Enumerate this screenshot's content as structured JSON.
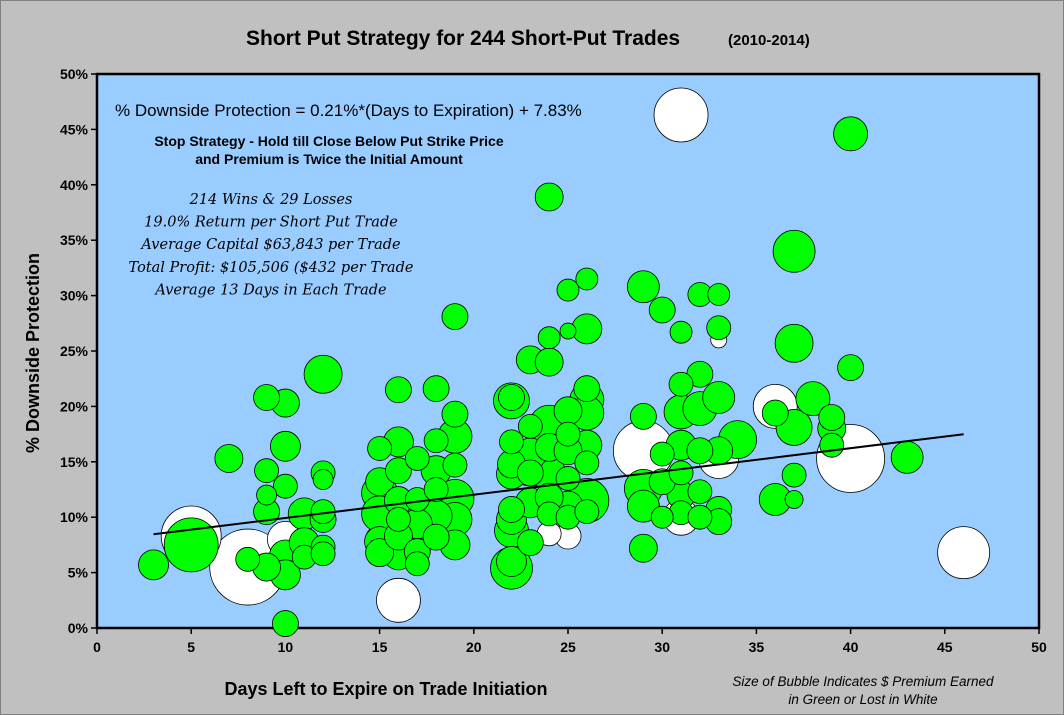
{
  "chart_data": {
    "type": "scatter",
    "title": "Short Put Strategy for 244 Short-Put Trades",
    "subtitle": "(2010-2014)",
    "xlabel": "Days Left to Expire on Trade Initiation",
    "ylabel": "% Downside Protection",
    "xlim": [
      0,
      50
    ],
    "ylim": [
      0,
      50
    ],
    "x_ticks": [
      "0",
      "5",
      "10",
      "15",
      "20",
      "25",
      "30",
      "35",
      "40",
      "45",
      "50"
    ],
    "y_ticks": [
      "0%",
      "5%",
      "10%",
      "15%",
      "20%",
      "25%",
      "30%",
      "35%",
      "40%",
      "45%",
      "50%"
    ],
    "grid": false,
    "colors": {
      "win": "#00ff00",
      "loss": "#ffffff",
      "plot_bg": "#99ccff",
      "outer_bg": "#c0c0c0"
    },
    "trendline": {
      "slope": 0.21,
      "intercept": 7.83,
      "x_range": [
        3,
        46
      ]
    },
    "annotations": {
      "equation": "% Downside Protection = 0.21%*(Days to Expiration) + 7.83%",
      "stop_line1": "Stop Strategy - Hold till Close Below Put Strike Price",
      "stop_line2": "and Premium is Twice the Initial Amount",
      "stats": [
        "214 Wins & 29 Losses",
        "19.0% Return per Short Put Trade",
        "Average Capital $63,843 per Trade",
        "Total Profit: $105,506 ($432 per Trade",
        "Average 13 Days in Each Trade"
      ],
      "bubble_note_line1": "Size of Bubble Indicates $ Premium Earned",
      "bubble_note_line2": "in Green or Lost in White"
    },
    "series": [
      {
        "name": "Lost",
        "points": [
          {
            "x": 5,
            "y": 8.3,
            "r": 30
          },
          {
            "x": 8,
            "y": 5.5,
            "r": 38
          },
          {
            "x": 10,
            "y": 8.0,
            "r": 18
          },
          {
            "x": 15,
            "y": 8.0,
            "r": 14
          },
          {
            "x": 16,
            "y": 2.5,
            "r": 22
          },
          {
            "x": 24,
            "y": 8.5,
            "r": 12
          },
          {
            "x": 25,
            "y": 8.3,
            "r": 13
          },
          {
            "x": 29,
            "y": 16.0,
            "r": 30
          },
          {
            "x": 31,
            "y": 46.3,
            "r": 27
          },
          {
            "x": 31,
            "y": 10.0,
            "r": 18
          },
          {
            "x": 33,
            "y": 15.3,
            "r": 20
          },
          {
            "x": 33,
            "y": 26.0,
            "r": 8
          },
          {
            "x": 36,
            "y": 20.0,
            "r": 22
          },
          {
            "x": 40,
            "y": 15.3,
            "r": 34
          },
          {
            "x": 46,
            "y": 6.8,
            "r": 26
          }
        ]
      },
      {
        "name": "Earned",
        "points": [
          {
            "x": 3,
            "y": 5.7,
            "r": 15
          },
          {
            "x": 5,
            "y": 7.5,
            "r": 27
          },
          {
            "x": 7,
            "y": 15.3,
            "r": 14
          },
          {
            "x": 8,
            "y": 6.2,
            "r": 12
          },
          {
            "x": 9,
            "y": 20.8,
            "r": 13
          },
          {
            "x": 9,
            "y": 14.2,
            "r": 12
          },
          {
            "x": 9,
            "y": 12.0,
            "r": 10
          },
          {
            "x": 9,
            "y": 10.5,
            "r": 13
          },
          {
            "x": 9,
            "y": 5.5,
            "r": 14
          },
          {
            "x": 10,
            "y": 20.3,
            "r": 14
          },
          {
            "x": 10,
            "y": 16.4,
            "r": 15
          },
          {
            "x": 10,
            "y": 12.8,
            "r": 12
          },
          {
            "x": 10,
            "y": 6.5,
            "r": 16
          },
          {
            "x": 10,
            "y": 4.8,
            "r": 15
          },
          {
            "x": 10,
            "y": 0.4,
            "r": 13
          },
          {
            "x": 11,
            "y": 10.3,
            "r": 16
          },
          {
            "x": 11,
            "y": 7.7,
            "r": 15
          },
          {
            "x": 11,
            "y": 6.4,
            "r": 12
          },
          {
            "x": 12,
            "y": 22.9,
            "r": 19
          },
          {
            "x": 12,
            "y": 14.0,
            "r": 12
          },
          {
            "x": 12,
            "y": 13.4,
            "r": 10
          },
          {
            "x": 12,
            "y": 10.5,
            "r": 12
          },
          {
            "x": 12,
            "y": 9.8,
            "r": 13
          },
          {
            "x": 12,
            "y": 7.3,
            "r": 12
          },
          {
            "x": 12,
            "y": 6.7,
            "r": 12
          },
          {
            "x": 15,
            "y": 16.2,
            "r": 12
          },
          {
            "x": 15,
            "y": 13.2,
            "r": 14
          },
          {
            "x": 15,
            "y": 12.2,
            "r": 18
          },
          {
            "x": 15,
            "y": 10.3,
            "r": 18
          },
          {
            "x": 15,
            "y": 7.8,
            "r": 15
          },
          {
            "x": 15,
            "y": 6.8,
            "r": 14
          },
          {
            "x": 16,
            "y": 21.5,
            "r": 13
          },
          {
            "x": 16,
            "y": 16.8,
            "r": 15
          },
          {
            "x": 16,
            "y": 14.2,
            "r": 13
          },
          {
            "x": 16,
            "y": 11.5,
            "r": 14
          },
          {
            "x": 16,
            "y": 9.8,
            "r": 12
          },
          {
            "x": 16,
            "y": 8.3,
            "r": 14
          },
          {
            "x": 16,
            "y": 6.6,
            "r": 15
          },
          {
            "x": 17,
            "y": 15.3,
            "r": 12
          },
          {
            "x": 17,
            "y": 11.6,
            "r": 12
          },
          {
            "x": 17,
            "y": 9.4,
            "r": 15
          },
          {
            "x": 17,
            "y": 6.9,
            "r": 13
          },
          {
            "x": 17,
            "y": 5.8,
            "r": 12
          },
          {
            "x": 18,
            "y": 21.6,
            "r": 13
          },
          {
            "x": 18,
            "y": 16.9,
            "r": 12
          },
          {
            "x": 18,
            "y": 14.2,
            "r": 15
          },
          {
            "x": 18,
            "y": 12.5,
            "r": 12
          },
          {
            "x": 18,
            "y": 10.1,
            "r": 16
          },
          {
            "x": 18,
            "y": 8.2,
            "r": 13
          },
          {
            "x": 19,
            "y": 28.1,
            "r": 13
          },
          {
            "x": 19,
            "y": 19.3,
            "r": 13
          },
          {
            "x": 19,
            "y": 17.3,
            "r": 17
          },
          {
            "x": 19,
            "y": 14.7,
            "r": 12
          },
          {
            "x": 19,
            "y": 11.7,
            "r": 19
          },
          {
            "x": 19,
            "y": 9.8,
            "r": 17
          },
          {
            "x": 19,
            "y": 7.5,
            "r": 15
          },
          {
            "x": 22,
            "y": 20.8,
            "r": 13
          },
          {
            "x": 22,
            "y": 20.5,
            "r": 18
          },
          {
            "x": 22,
            "y": 16.8,
            "r": 12
          },
          {
            "x": 22,
            "y": 14.8,
            "r": 14
          },
          {
            "x": 22,
            "y": 13.9,
            "r": 15
          },
          {
            "x": 22,
            "y": 10.7,
            "r": 13
          },
          {
            "x": 22,
            "y": 9.8,
            "r": 15
          },
          {
            "x": 22,
            "y": 8.8,
            "r": 17
          },
          {
            "x": 22,
            "y": 6.0,
            "r": 15
          },
          {
            "x": 22,
            "y": 5.4,
            "r": 21
          },
          {
            "x": 23,
            "y": 24.2,
            "r": 14
          },
          {
            "x": 23,
            "y": 18.2,
            "r": 12
          },
          {
            "x": 23,
            "y": 15.7,
            "r": 16
          },
          {
            "x": 23,
            "y": 14.0,
            "r": 13
          },
          {
            "x": 23,
            "y": 11.3,
            "r": 15
          },
          {
            "x": 23,
            "y": 7.7,
            "r": 13
          },
          {
            "x": 23,
            "y": 14.6,
            "r": 20
          },
          {
            "x": 24,
            "y": 38.9,
            "r": 14
          },
          {
            "x": 24,
            "y": 26.2,
            "r": 11
          },
          {
            "x": 24,
            "y": 24.0,
            "r": 14
          },
          {
            "x": 24,
            "y": 18.3,
            "r": 20
          },
          {
            "x": 24,
            "y": 16.3,
            "r": 14
          },
          {
            "x": 24,
            "y": 13.9,
            "r": 17
          },
          {
            "x": 24,
            "y": 11.8,
            "r": 14
          },
          {
            "x": 24,
            "y": 10.3,
            "r": 12
          },
          {
            "x": 25,
            "y": 30.5,
            "r": 11
          },
          {
            "x": 25,
            "y": 26.8,
            "r": 8
          },
          {
            "x": 25,
            "y": 19.6,
            "r": 14
          },
          {
            "x": 25,
            "y": 17.5,
            "r": 12
          },
          {
            "x": 25,
            "y": 16.0,
            "r": 14
          },
          {
            "x": 25,
            "y": 13.5,
            "r": 12
          },
          {
            "x": 25,
            "y": 11.0,
            "r": 15
          },
          {
            "x": 25,
            "y": 10.0,
            "r": 12
          },
          {
            "x": 26,
            "y": 31.5,
            "r": 11
          },
          {
            "x": 26,
            "y": 27.0,
            "r": 15
          },
          {
            "x": 26,
            "y": 21.6,
            "r": 13
          },
          {
            "x": 26,
            "y": 20.6,
            "r": 17
          },
          {
            "x": 26,
            "y": 19.4,
            "r": 17
          },
          {
            "x": 26,
            "y": 16.5,
            "r": 15
          },
          {
            "x": 26,
            "y": 14.9,
            "r": 12
          },
          {
            "x": 26,
            "y": 11.5,
            "r": 22
          },
          {
            "x": 26,
            "y": 10.5,
            "r": 12
          },
          {
            "x": 29,
            "y": 30.8,
            "r": 16
          },
          {
            "x": 29,
            "y": 19.1,
            "r": 13
          },
          {
            "x": 29,
            "y": 12.6,
            "r": 19
          },
          {
            "x": 29,
            "y": 11.0,
            "r": 16
          },
          {
            "x": 29,
            "y": 7.2,
            "r": 14
          },
          {
            "x": 30,
            "y": 28.7,
            "r": 13
          },
          {
            "x": 30,
            "y": 15.7,
            "r": 12
          },
          {
            "x": 30,
            "y": 13.2,
            "r": 13
          },
          {
            "x": 30,
            "y": 10.0,
            "r": 11
          },
          {
            "x": 31,
            "y": 26.7,
            "r": 11
          },
          {
            "x": 31,
            "y": 22.0,
            "r": 12
          },
          {
            "x": 31,
            "y": 19.5,
            "r": 17
          },
          {
            "x": 31,
            "y": 16.5,
            "r": 15
          },
          {
            "x": 31,
            "y": 14.0,
            "r": 12
          },
          {
            "x": 31,
            "y": 12.0,
            "r": 14
          },
          {
            "x": 31,
            "y": 10.4,
            "r": 12
          },
          {
            "x": 32,
            "y": 30.1,
            "r": 12
          },
          {
            "x": 32,
            "y": 22.9,
            "r": 13
          },
          {
            "x": 32,
            "y": 16.0,
            "r": 13
          },
          {
            "x": 32,
            "y": 12.3,
            "r": 12
          },
          {
            "x": 32,
            "y": 10.0,
            "r": 12
          },
          {
            "x": 32,
            "y": 19.8,
            "r": 17
          },
          {
            "x": 33,
            "y": 30.1,
            "r": 11
          },
          {
            "x": 33,
            "y": 27.1,
            "r": 12
          },
          {
            "x": 33,
            "y": 20.8,
            "r": 16
          },
          {
            "x": 33,
            "y": 16.0,
            "r": 14
          },
          {
            "x": 33,
            "y": 10.7,
            "r": 13
          },
          {
            "x": 33,
            "y": 9.6,
            "r": 13
          },
          {
            "x": 34,
            "y": 17.0,
            "r": 19
          },
          {
            "x": 36,
            "y": 19.4,
            "r": 13
          },
          {
            "x": 36,
            "y": 11.6,
            "r": 16
          },
          {
            "x": 37,
            "y": 34.0,
            "r": 21
          },
          {
            "x": 37,
            "y": 25.7,
            "r": 19
          },
          {
            "x": 37,
            "y": 18.1,
            "r": 18
          },
          {
            "x": 37,
            "y": 13.8,
            "r": 12
          },
          {
            "x": 37,
            "y": 11.6,
            "r": 9
          },
          {
            "x": 38,
            "y": 20.7,
            "r": 17
          },
          {
            "x": 39,
            "y": 19.0,
            "r": 13
          },
          {
            "x": 39,
            "y": 18.0,
            "r": 14
          },
          {
            "x": 39,
            "y": 16.5,
            "r": 12
          },
          {
            "x": 40,
            "y": 44.6,
            "r": 17
          },
          {
            "x": 40,
            "y": 23.5,
            "r": 13
          },
          {
            "x": 43,
            "y": 15.4,
            "r": 16
          }
        ]
      }
    ]
  }
}
